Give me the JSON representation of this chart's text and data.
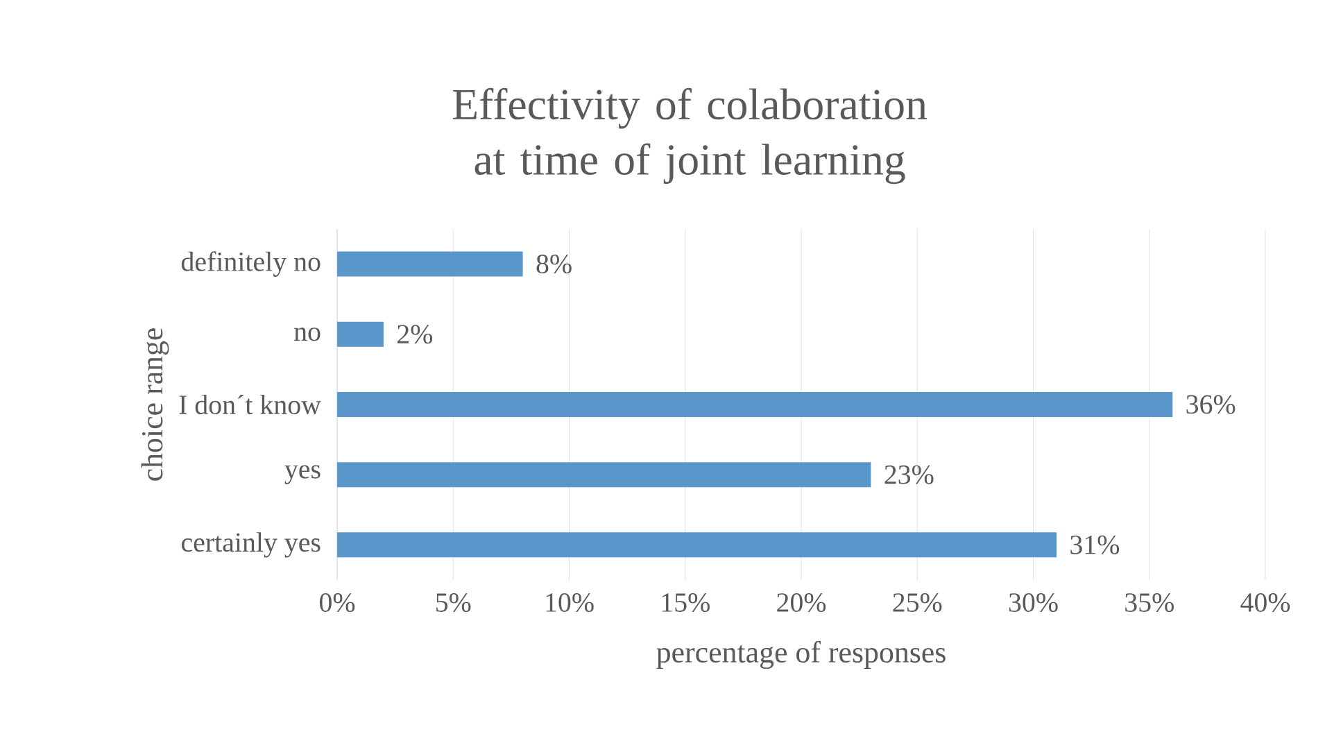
{
  "chart_data": {
    "type": "bar",
    "orientation": "horizontal",
    "title": "Effectivity of colaboration at time of joint learning",
    "xlabel": "percentage of responses",
    "ylabel": "choice range",
    "categories": [
      "definitely no",
      "no",
      "I don´t know",
      "yes",
      "certainly yes"
    ],
    "values": [
      8,
      2,
      36,
      23,
      31
    ],
    "value_labels": [
      "8%",
      "2%",
      "36%",
      "23%",
      "31%"
    ],
    "color": "#5b96cb",
    "xlim": [
      0,
      40
    ],
    "xticks": [
      {
        "value": 0,
        "label": "0%"
      },
      {
        "value": 5,
        "label": "5%"
      },
      {
        "value": 10,
        "label": "10%"
      },
      {
        "value": 15,
        "label": "15%"
      },
      {
        "value": 20,
        "label": "20%"
      },
      {
        "value": 25,
        "label": "25%"
      },
      {
        "value": 30,
        "label": "30%"
      },
      {
        "value": 35,
        "label": "35%"
      },
      {
        "value": 40,
        "label": "40%"
      }
    ],
    "grid": "x",
    "legend": false
  }
}
